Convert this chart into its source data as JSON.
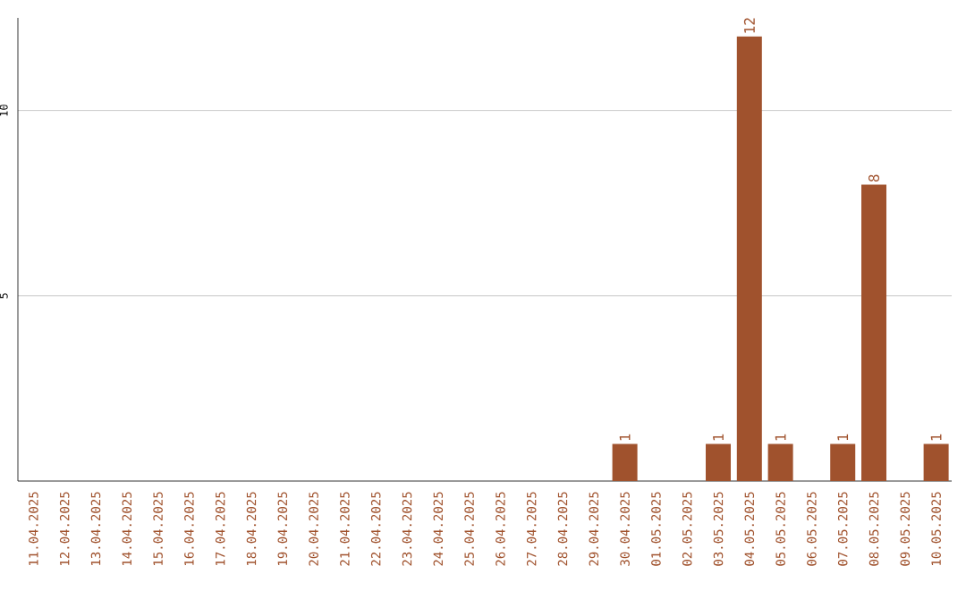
{
  "chart_data": {
    "type": "bar",
    "categories": [
      "11.04.2025",
      "12.04.2025",
      "13.04.2025",
      "14.04.2025",
      "15.04.2025",
      "16.04.2025",
      "17.04.2025",
      "18.04.2025",
      "19.04.2025",
      "20.04.2025",
      "21.04.2025",
      "22.04.2025",
      "23.04.2025",
      "24.04.2025",
      "25.04.2025",
      "26.04.2025",
      "27.04.2025",
      "28.04.2025",
      "29.04.2025",
      "30.04.2025",
      "01.05.2025",
      "02.05.2025",
      "03.05.2025",
      "04.05.2025",
      "05.05.2025",
      "06.05.2025",
      "07.05.2025",
      "08.05.2025",
      "09.05.2025",
      "10.05.2025"
    ],
    "values": [
      0,
      0,
      0,
      0,
      0,
      0,
      0,
      0,
      0,
      0,
      0,
      0,
      0,
      0,
      0,
      0,
      0,
      0,
      0,
      1,
      0,
      0,
      1,
      12,
      1,
      0,
      1,
      8,
      0,
      1
    ],
    "value_labels": [
      null,
      null,
      null,
      null,
      null,
      null,
      null,
      null,
      null,
      null,
      null,
      null,
      null,
      null,
      null,
      null,
      null,
      null,
      null,
      "1",
      null,
      null,
      "1",
      "12",
      "1",
      null,
      "1",
      "8",
      null,
      "1"
    ],
    "color": "#a0522d",
    "ylim": [
      0,
      12.5
    ],
    "yticks": [
      5,
      10
    ],
    "grid": "y"
  }
}
